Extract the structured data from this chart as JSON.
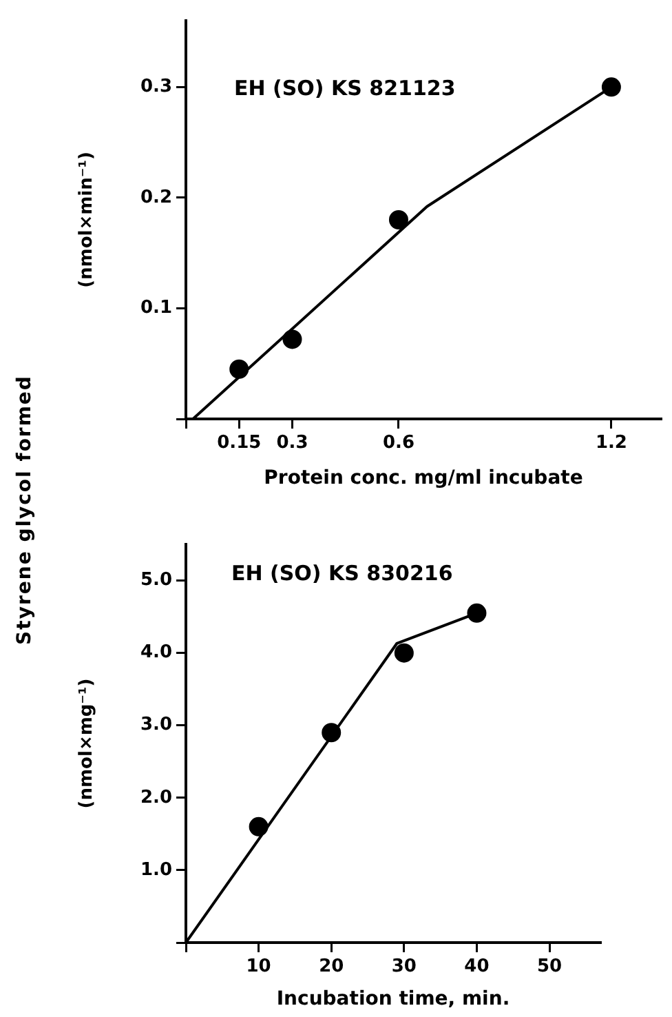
{
  "chart_data": [
    {
      "type": "scatter",
      "title": "EH (SO) KS 821123",
      "xlabel": "Protein conc. mg/ml incubate",
      "ylabel": "(nmol×min⁻¹)",
      "annotations": [
        "Styrene glycol formed"
      ],
      "xlim": [
        0,
        1.34
      ],
      "xticks": [
        {
          "value": 0,
          "label": null
        },
        0.15,
        0.3,
        0.6,
        1.2
      ],
      "ylim": [
        0,
        0.36
      ],
      "yticks": [
        {
          "value": 0,
          "label": null
        },
        0.1,
        0.2,
        0.3
      ],
      "grid": false,
      "series": [
        {
          "marker": "circle",
          "color": "#000000",
          "x": [
            0.15,
            0.3,
            0.6,
            1.2
          ],
          "values": [
            0.045,
            0.072,
            0.18,
            0.3
          ]
        },
        {
          "type": "line",
          "marker": "none",
          "color": "#000000",
          "x": [
            0.02,
            0.68,
            1.2
          ],
          "values": [
            0,
            0.192,
            0.3
          ]
        }
      ]
    },
    {
      "type": "scatter",
      "title": "EH (SO) KS 830216",
      "xlabel": "Incubation time, min.",
      "ylabel": "(nmol×mg⁻¹)",
      "xlim": [
        0,
        57
      ],
      "xticks": [
        {
          "value": 0,
          "label": null
        },
        10,
        20,
        30,
        40,
        50
      ],
      "ylim": [
        0,
        5.5
      ],
      "yticks": [
        {
          "value": 0,
          "label": null
        },
        {
          "value": 1,
          "label": "1.0"
        },
        {
          "value": 2,
          "label": "2.0"
        },
        {
          "value": 3,
          "label": "3.0"
        },
        {
          "value": 4,
          "label": "4.0"
        },
        {
          "value": 5,
          "label": "5.0"
        }
      ],
      "grid": false,
      "series": [
        {
          "marker": "circle",
          "color": "#000000",
          "x": [
            10,
            20,
            30,
            40
          ],
          "values": [
            1.6,
            2.9,
            4.0,
            4.55
          ]
        },
        {
          "type": "line",
          "marker": "none",
          "color": "#000000",
          "x": [
            0,
            29,
            40
          ],
          "values": [
            0,
            4.13,
            4.55
          ]
        }
      ]
    }
  ]
}
